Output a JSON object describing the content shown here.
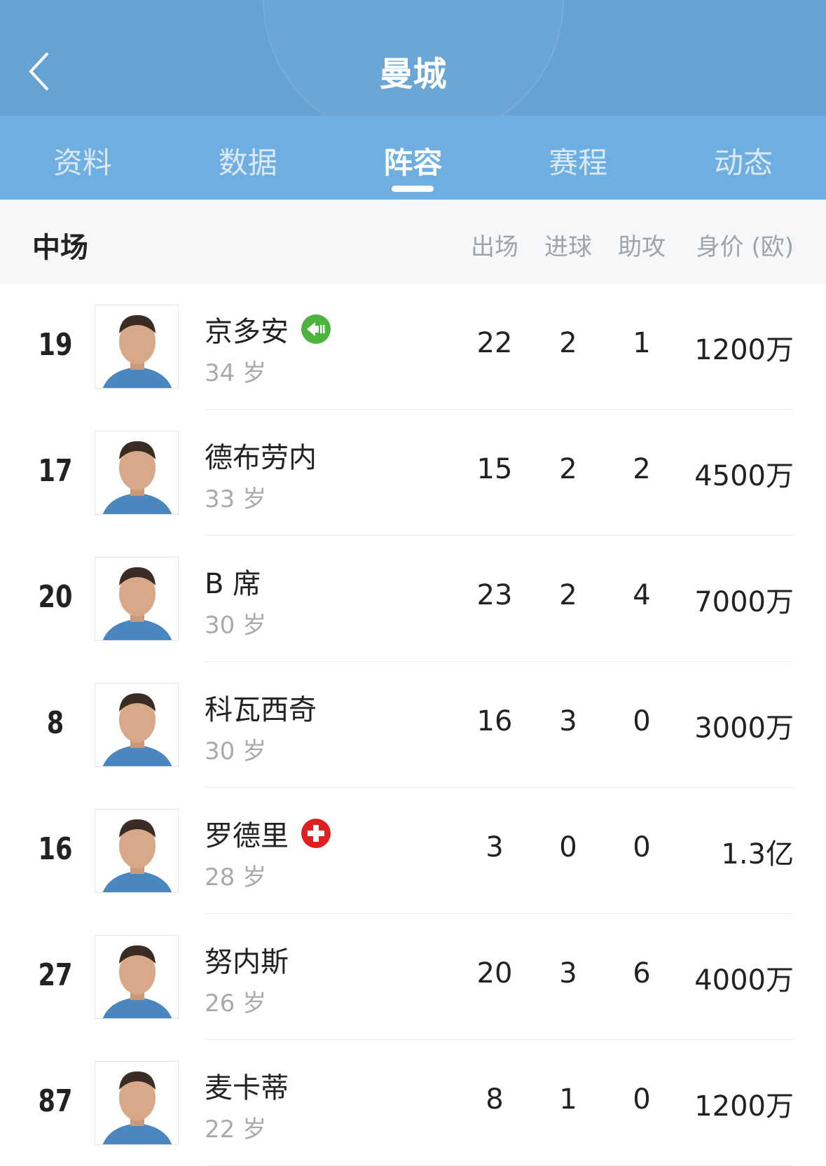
{
  "header": {
    "title": "曼城",
    "back_icon": "chevron-left-icon"
  },
  "tabs": [
    {
      "label": "资料"
    },
    {
      "label": "数据"
    },
    {
      "label": "阵容",
      "active": true
    },
    {
      "label": "赛程"
    },
    {
      "label": "动态"
    }
  ],
  "section": {
    "title": "中场",
    "columns": [
      "出场",
      "进球",
      "助攻",
      "身价 (欧)"
    ]
  },
  "players": [
    {
      "number": "19",
      "name": "京多安",
      "age": "34 岁",
      "apps": "22",
      "goals": "2",
      "assists": "1",
      "value": "1200万",
      "badge": "substitution-out-icon",
      "badge_color": "#4cb33f"
    },
    {
      "number": "17",
      "name": "德布劳内",
      "age": "33 岁",
      "apps": "15",
      "goals": "2",
      "assists": "2",
      "value": "4500万"
    },
    {
      "number": "20",
      "name": "B 席",
      "age": "30 岁",
      "apps": "23",
      "goals": "2",
      "assists": "4",
      "value": "7000万"
    },
    {
      "number": "8",
      "name": "科瓦西奇",
      "age": "30 岁",
      "apps": "16",
      "goals": "3",
      "assists": "0",
      "value": "3000万"
    },
    {
      "number": "16",
      "name": "罗德里",
      "age": "28 岁",
      "apps": "3",
      "goals": "0",
      "assists": "0",
      "value": "1.3亿",
      "badge": "injury-cross-icon",
      "badge_color": "#e02020"
    },
    {
      "number": "27",
      "name": "努内斯",
      "age": "26 岁",
      "apps": "20",
      "goals": "3",
      "assists": "6",
      "value": "4000万"
    },
    {
      "number": "87",
      "name": "麦卡蒂",
      "age": "22 岁",
      "apps": "8",
      "goals": "1",
      "assists": "0",
      "value": "1200万"
    }
  ]
}
